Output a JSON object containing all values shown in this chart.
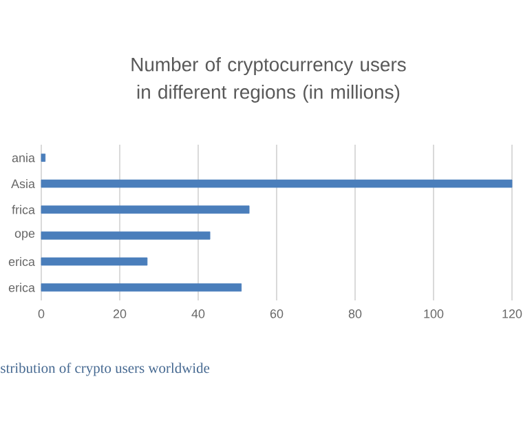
{
  "chart_data": {
    "type": "bar",
    "orientation": "horizontal",
    "title": "Number of cryptocurrency users in different regions (in millions)",
    "categories": [
      "ania",
      "Asia",
      "frica",
      "ope",
      "erica",
      "erica"
    ],
    "values": [
      1,
      120,
      53,
      43,
      27,
      51
    ],
    "color": "#4a7ebb",
    "xlim": [
      0,
      120
    ],
    "xticks": [
      0,
      20,
      40,
      60,
      80,
      100,
      120
    ],
    "grid": "x",
    "annotations": [
      "stribution of crypto users worldwide"
    ]
  }
}
